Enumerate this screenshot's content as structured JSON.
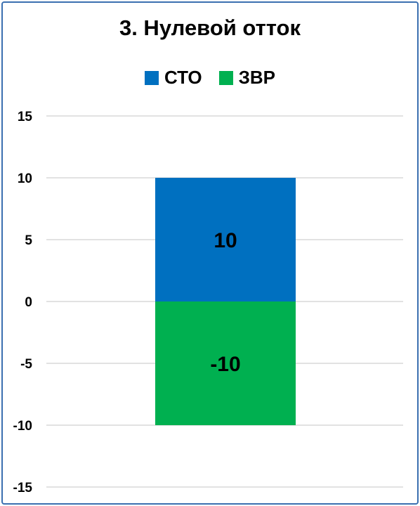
{
  "chart_data": {
    "type": "bar",
    "stacked": true,
    "title": "3. Нулевой отток",
    "categories": [
      ""
    ],
    "series": [
      {
        "name": "СТО",
        "values": [
          10
        ],
        "color": "#0070c0"
      },
      {
        "name": "ЗВР",
        "values": [
          -10
        ],
        "color": "#00b050"
      }
    ],
    "ylim": [
      -15,
      15
    ],
    "yticks": [
      15,
      10,
      5,
      0,
      -5,
      -10,
      -15
    ],
    "grid": true,
    "legend_position": "top",
    "data_labels": [
      "10",
      "-10"
    ]
  }
}
